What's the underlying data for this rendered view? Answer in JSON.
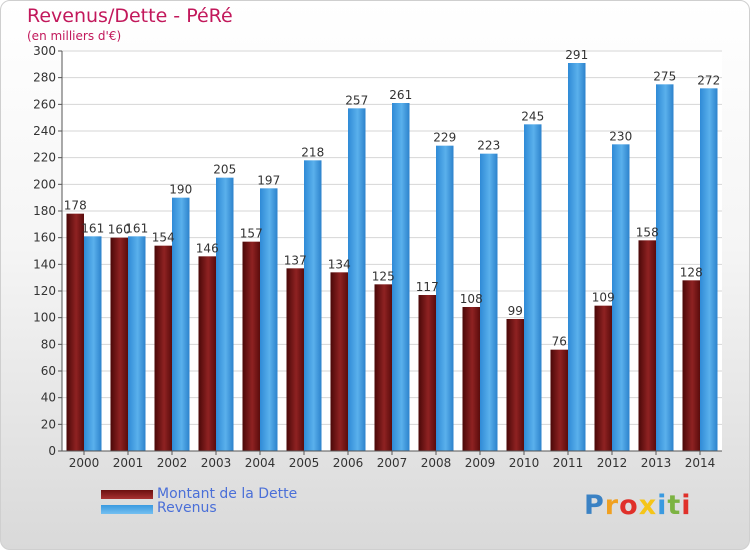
{
  "title": "Revenus/Dette - PéRé",
  "subtitle": "(en milliers d'€)",
  "chart_data": {
    "type": "bar",
    "categories": [
      "2000",
      "2001",
      "2002",
      "2003",
      "2004",
      "2005",
      "2006",
      "2007",
      "2008",
      "2009",
      "2010",
      "2011",
      "2012",
      "2013",
      "2014"
    ],
    "series": [
      {
        "name": "Montant de la Dette",
        "color": "#8b1a1a",
        "values": [
          178,
          160,
          154,
          146,
          157,
          137,
          134,
          125,
          117,
          108,
          99,
          76,
          109,
          158,
          128
        ]
      },
      {
        "name": "Revenus",
        "color": "#3a9ae0",
        "values": [
          161,
          161,
          190,
          205,
          197,
          218,
          257,
          261,
          229,
          223,
          245,
          291,
          230,
          275,
          272
        ]
      }
    ],
    "ylim": [
      0,
      300
    ],
    "yticks": [
      0,
      20,
      40,
      60,
      80,
      100,
      120,
      140,
      160,
      180,
      200,
      220,
      240,
      260,
      280,
      300
    ],
    "grid": true,
    "legend": "bottom-left"
  },
  "legend": [
    {
      "label": "Montant de la Dette",
      "color": "#6b0f0f"
    },
    {
      "label": "Revenus",
      "color": "#3a9ae0"
    }
  ],
  "logo": {
    "letters": [
      "P",
      "r",
      "o",
      "x",
      "i",
      "t",
      "i"
    ],
    "colors": [
      "#3b82c4",
      "#f0a020",
      "#e0302a",
      "#f5c518",
      "#3a9ae0",
      "#7cb342",
      "#e0302a"
    ]
  }
}
